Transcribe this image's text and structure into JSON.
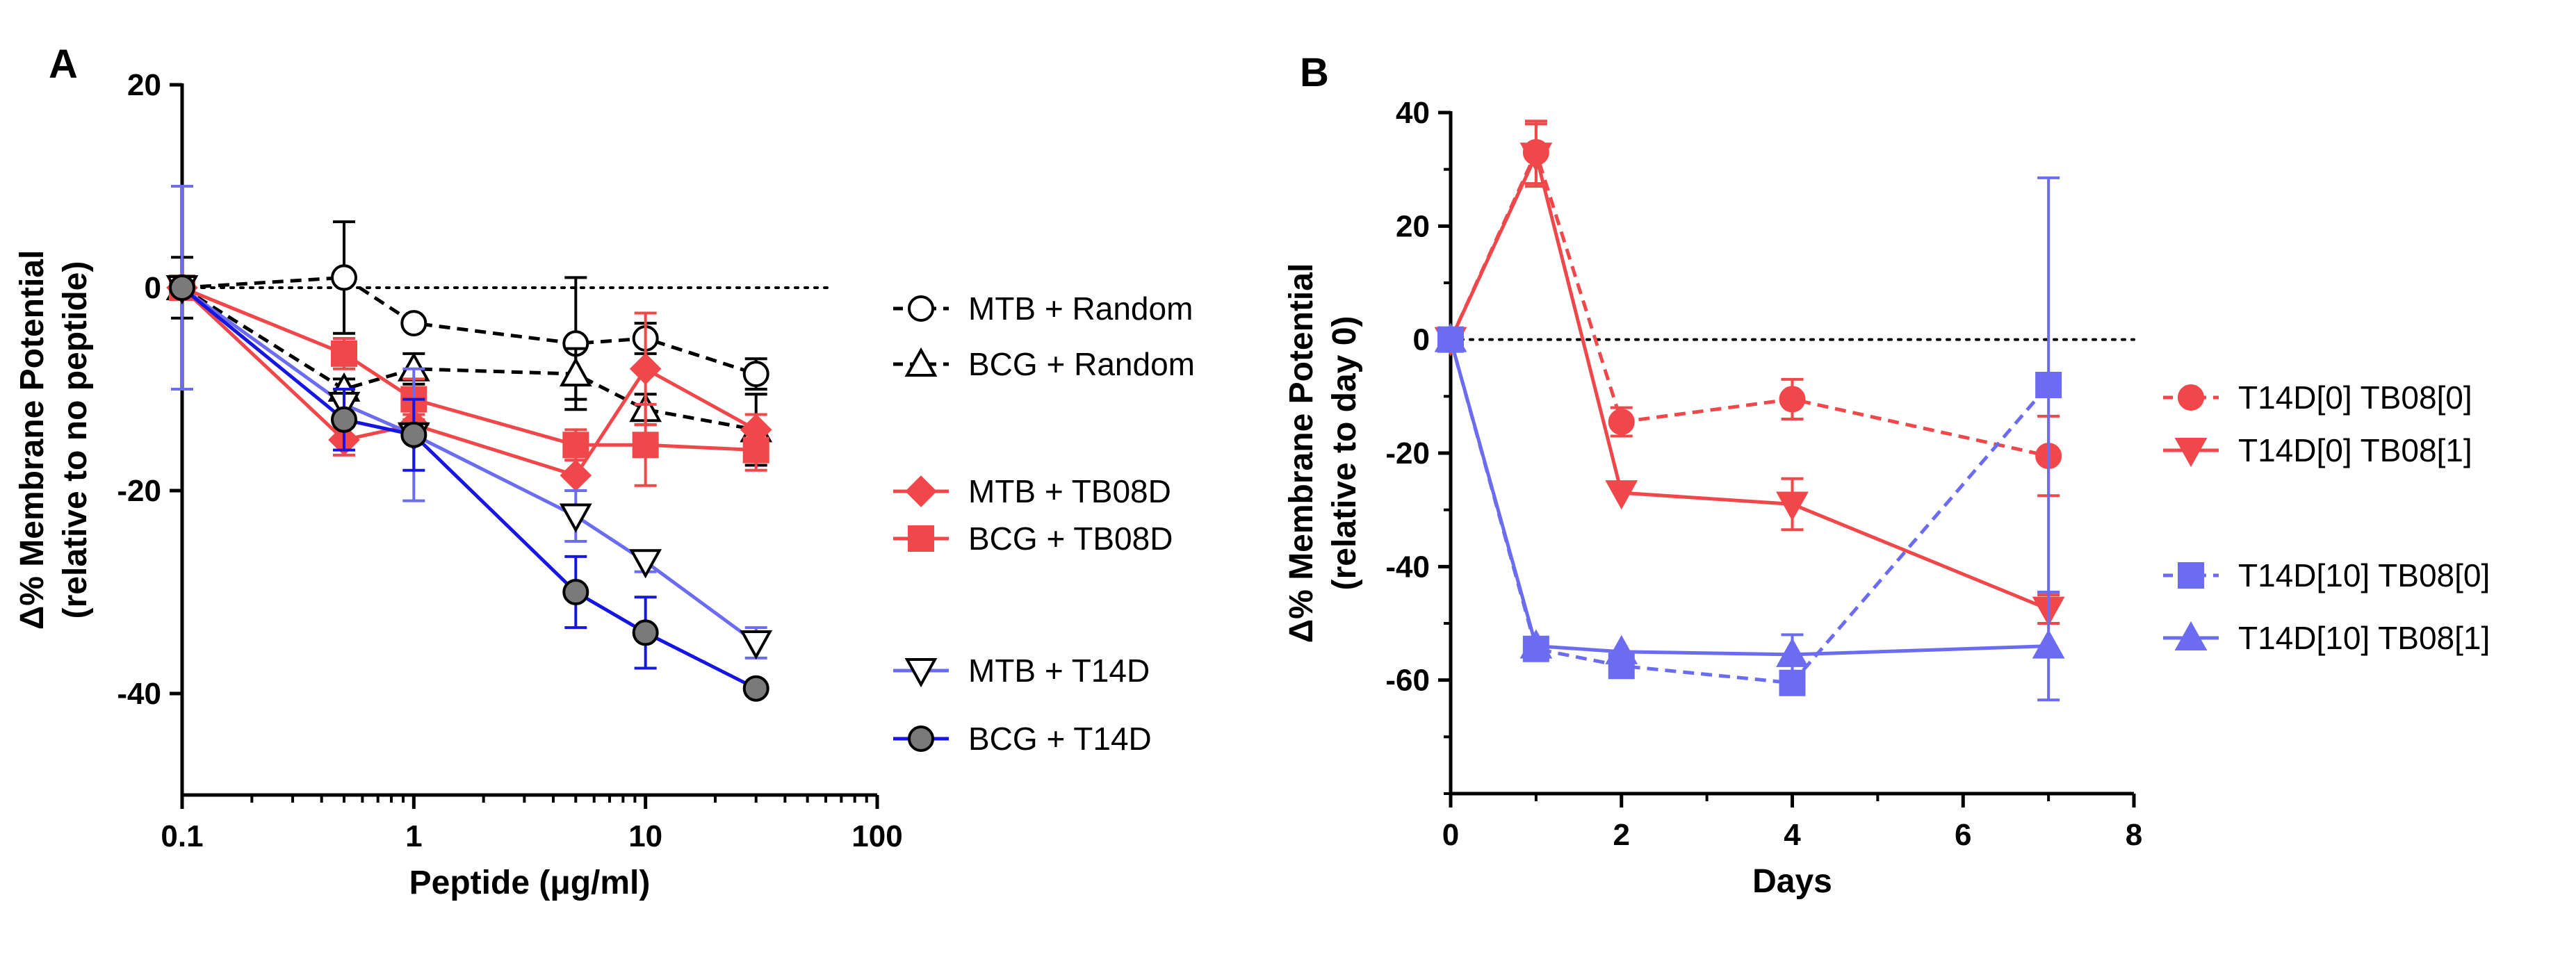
{
  "chart_data": [
    {
      "panel": "A",
      "type": "line",
      "xscale": "log",
      "xlim": [
        0.1,
        100
      ],
      "ylim": [
        -50,
        20
      ],
      "xticks": [
        0.1,
        1,
        10,
        100
      ],
      "xtick_labels": [
        "0.1",
        "1",
        "10",
        "100"
      ],
      "yticks": [
        20,
        0,
        -20,
        -40
      ],
      "ytick_labels": [
        "20",
        "0",
        "-20",
        "-40"
      ],
      "xlabel": "Peptide (μg/ml)",
      "ylabel_line1": "Δ% Membrane Potential",
      "ylabel_line2": "(relative to no peptide)",
      "reference_line": 0,
      "series": [
        {
          "name": "MTB + Random",
          "color": "#000000",
          "marker": "circle-open",
          "dashed": true,
          "x": [
            0.1,
            0.5,
            1,
            5,
            10,
            30
          ],
          "y": [
            0,
            1,
            -3.5,
            -5.5,
            -5,
            -8.5
          ],
          "err": [
            3,
            5.5,
            0,
            6.5,
            1.5,
            1.5
          ]
        },
        {
          "name": "BCG + Random",
          "color": "#000000",
          "marker": "triangle-open",
          "dashed": true,
          "x": [
            0.1,
            0.5,
            1,
            5,
            10,
            30
          ],
          "y": [
            0,
            -10,
            -8,
            -8.5,
            -12,
            -14
          ],
          "err": [
            1,
            1,
            1.5,
            2.5,
            1.5,
            3.5
          ]
        },
        {
          "name": "MTB + TB08D",
          "color": "#f0484a",
          "marker": "diamond",
          "dashed": false,
          "x": [
            0.1,
            0.5,
            1,
            5,
            10,
            30
          ],
          "y": [
            0,
            -15,
            -13.5,
            -18.5,
            -8,
            -14
          ],
          "err": [
            0,
            1.5,
            1,
            1.5,
            5.5,
            1.5
          ]
        },
        {
          "name": "BCG + TB08D",
          "color": "#f0484a",
          "marker": "square",
          "dashed": false,
          "x": [
            0.1,
            0.5,
            1,
            5,
            10,
            30
          ],
          "y": [
            0,
            -6.5,
            -11,
            -15.5,
            -15.5,
            -16
          ],
          "err": [
            0,
            1.5,
            2,
            1.5,
            4,
            2
          ]
        },
        {
          "name": "MTB + T14D",
          "color": "#6b6cf0",
          "marker": "triangle-down-open",
          "dashed": false,
          "x": [
            0.1,
            0.5,
            1,
            5,
            10,
            30
          ],
          "y": [
            0,
            -11.5,
            -14.5,
            -22.5,
            -27,
            -35
          ],
          "err": [
            10,
            1.5,
            6.5,
            2.5,
            1,
            1.5
          ]
        },
        {
          "name": "BCG + T14D",
          "color": "#1616e0",
          "marker": "circle-filled",
          "dashed": false,
          "x": [
            0.1,
            0.5,
            1,
            5,
            10,
            30
          ],
          "y": [
            0,
            -13,
            -14.5,
            -30,
            -34,
            -39.5
          ],
          "err": [
            0,
            3,
            3.5,
            3.5,
            3.5,
            0
          ]
        }
      ]
    },
    {
      "panel": "B",
      "type": "line",
      "xscale": "linear",
      "xlim": [
        0,
        8
      ],
      "ylim": [
        -80,
        40
      ],
      "xticks": [
        0,
        2,
        4,
        6,
        8
      ],
      "xtick_labels": [
        "0",
        "2",
        "4",
        "6",
        "8"
      ],
      "yticks": [
        40,
        20,
        0,
        -20,
        -40,
        -60
      ],
      "ytick_labels": [
        "40",
        "20",
        "0",
        "-20",
        "-40",
        "-60"
      ],
      "xlabel": "Days",
      "ylabel_line1": "Δ% Membrane Potential",
      "ylabel_line2": "(relative to day 0)",
      "reference_line": 0,
      "series": [
        {
          "name": "T14D[0] TB08[0]",
          "color": "#f0484a",
          "marker": "circle-filled",
          "dashed": true,
          "x": [
            0,
            1,
            2,
            4,
            7
          ],
          "y": [
            0,
            33,
            -14.5,
            -10.5,
            -20.5
          ],
          "err": [
            0,
            5.5,
            2.5,
            3.5,
            7
          ]
        },
        {
          "name": "T14D[0] TB08[1]",
          "color": "#f0484a",
          "marker": "triangle-down",
          "dashed": false,
          "x": [
            0,
            1,
            2,
            4,
            7
          ],
          "y": [
            0,
            32.5,
            -27,
            -29,
            -47.5
          ],
          "err": [
            0,
            5.5,
            0,
            4.5,
            2.5
          ]
        },
        {
          "name": "T14D[10] TB08[0]",
          "color": "#6b6cf0",
          "marker": "square",
          "dashed": true,
          "x": [
            0,
            1,
            2,
            4,
            7
          ],
          "y": [
            0,
            -54.5,
            -57.5,
            -60.5,
            -8
          ],
          "err": [
            0,
            1,
            0,
            0,
            36.5
          ]
        },
        {
          "name": "T14D[10] TB08[1]",
          "color": "#6b6cf0",
          "marker": "triangle-up",
          "dashed": false,
          "x": [
            0,
            1,
            2,
            4,
            7
          ],
          "y": [
            0,
            -54,
            -55,
            -55.5,
            -54
          ],
          "err": [
            0,
            0,
            0,
            3.5,
            9.5
          ]
        }
      ]
    }
  ]
}
